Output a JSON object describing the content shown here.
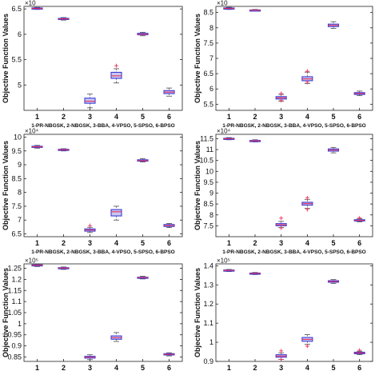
{
  "chart_data": [
    {
      "type": "box",
      "ylabel": "Objective Function Values",
      "xlabel": "1-PR-NBGSK, 2-NBGSK, 3-BBA, 4-VPSO, 5-SPSO, 6-BPSO",
      "exponent": "×10",
      "categories": [
        "1",
        "2",
        "3",
        "4",
        "5",
        "6"
      ],
      "ylim": [
        4.5,
        6.55
      ],
      "yticks": [
        "5",
        "5.5",
        "6",
        "6.5"
      ],
      "yticks_values": [
        5,
        5.5,
        6,
        6.5
      ],
      "boxes": [
        {
          "min": 6.49,
          "q1": 6.5,
          "median": 6.51,
          "q3": 6.52,
          "max": 6.53,
          "outliers": []
        },
        {
          "min": 6.28,
          "q1": 6.295,
          "median": 6.305,
          "q3": 6.315,
          "max": 6.33,
          "outliers": []
        },
        {
          "min": 4.55,
          "q1": 4.64,
          "median": 4.68,
          "q3": 4.74,
          "max": 4.82,
          "outliers": []
        },
        {
          "min": 5.04,
          "q1": 5.13,
          "median": 5.18,
          "q3": 5.25,
          "max": 5.32,
          "outliers": [
            5.38
          ]
        },
        {
          "min": 5.97,
          "q1": 5.99,
          "median": 6.0,
          "q3": 6.02,
          "max": 6.04,
          "outliers": []
        },
        {
          "min": 4.78,
          "q1": 4.83,
          "median": 4.86,
          "q3": 4.89,
          "max": 4.94,
          "outliers": []
        }
      ]
    },
    {
      "type": "box",
      "ylabel": "Objective Function Values",
      "xlabel": "1-PR-NBGSK, 2-NBGSK, 3-BBA, 4-VPSO, 5-SPSO, 6-BPSO",
      "exponent": "×10",
      "categories": [
        "1",
        "2",
        "3",
        "4",
        "5",
        "6"
      ],
      "ylim": [
        5.3,
        8.7
      ],
      "yticks": [
        "5.5",
        "6",
        "6.5",
        "7",
        "7.5",
        "8",
        "8.5"
      ],
      "yticks_values": [
        5.5,
        6,
        6.5,
        7,
        7.5,
        8,
        8.5
      ],
      "boxes": [
        {
          "min": 8.6,
          "q1": 8.62,
          "median": 8.635,
          "q3": 8.65,
          "max": 8.67,
          "outliers": []
        },
        {
          "min": 8.55,
          "q1": 8.565,
          "median": 8.575,
          "q3": 8.585,
          "max": 8.6,
          "outliers": []
        },
        {
          "min": 5.6,
          "q1": 5.67,
          "median": 5.71,
          "q3": 5.75,
          "max": 5.82,
          "outliers": [
            5.85,
            5.62
          ]
        },
        {
          "min": 6.18,
          "q1": 6.27,
          "median": 6.33,
          "q3": 6.4,
          "max": 6.55,
          "outliers": [
            6.58,
            6.22
          ]
        },
        {
          "min": 7.98,
          "q1": 8.04,
          "median": 8.08,
          "q3": 8.12,
          "max": 8.2,
          "outliers": []
        },
        {
          "min": 5.78,
          "q1": 5.82,
          "median": 5.85,
          "q3": 5.88,
          "max": 5.93,
          "outliers": []
        }
      ]
    },
    {
      "type": "box",
      "ylabel": "Objective Function Values",
      "xlabel": "1-PR-NBGSK, 2-NBGSK, 3-BBA, 4-VPSO, 5-SPSO, 6-BPSO",
      "exponent": "×10⁴",
      "categories": [
        "1",
        "2",
        "3",
        "4",
        "5",
        "6"
      ],
      "ylim": [
        6.4,
        10.1
      ],
      "yticks": [
        "6.5",
        "7",
        "7.5",
        "8",
        "8.5",
        "9",
        "9.5",
        "10"
      ],
      "yticks_values": [
        6.5,
        7,
        7.5,
        8,
        8.5,
        9,
        9.5,
        10
      ],
      "boxes": [
        {
          "min": 9.6,
          "q1": 9.63,
          "median": 9.65,
          "q3": 9.67,
          "max": 9.7,
          "outliers": []
        },
        {
          "min": 9.5,
          "q1": 9.52,
          "median": 9.54,
          "q3": 9.56,
          "max": 9.58,
          "outliers": []
        },
        {
          "min": 6.55,
          "q1": 6.6,
          "median": 6.64,
          "q3": 6.68,
          "max": 6.74,
          "outliers": [
            6.8
          ]
        },
        {
          "min": 7.0,
          "q1": 7.15,
          "median": 7.3,
          "q3": 7.38,
          "max": 7.5,
          "outliers": []
        },
        {
          "min": 9.1,
          "q1": 9.13,
          "median": 9.15,
          "q3": 9.18,
          "max": 9.22,
          "outliers": []
        },
        {
          "min": 6.73,
          "q1": 6.77,
          "median": 6.8,
          "q3": 6.84,
          "max": 6.88,
          "outliers": []
        }
      ]
    },
    {
      "type": "box",
      "ylabel": "Objective Function Values",
      "xlabel": "1-PR-NBGSK, 2-NBGSK, 3-BBA, 4-VPSO, 5-SPSO, 6-BPSO",
      "exponent": "×10⁴",
      "categories": [
        "1",
        "2",
        "3",
        "4",
        "5",
        "6"
      ],
      "ylim": [
        7.0,
        11.7
      ],
      "yticks": [
        "7.5",
        "8",
        "8.5",
        "9",
        "9.5",
        "10",
        "10.5",
        "11",
        "11.5"
      ],
      "yticks_values": [
        7.5,
        8,
        8.5,
        9,
        9.5,
        10,
        10.5,
        11,
        11.5
      ],
      "boxes": [
        {
          "min": 11.45,
          "q1": 11.48,
          "median": 11.5,
          "q3": 11.52,
          "max": 11.55,
          "outliers": []
        },
        {
          "min": 11.35,
          "q1": 11.38,
          "median": 11.4,
          "q3": 11.42,
          "max": 11.45,
          "outliers": []
        },
        {
          "min": 7.42,
          "q1": 7.5,
          "median": 7.55,
          "q3": 7.6,
          "max": 7.7,
          "outliers": [
            7.85,
            7.4
          ]
        },
        {
          "min": 8.3,
          "q1": 8.45,
          "median": 8.52,
          "q3": 8.58,
          "max": 8.7,
          "outliers": [
            8.78,
            8.25
          ]
        },
        {
          "min": 10.85,
          "q1": 10.93,
          "median": 10.98,
          "q3": 11.03,
          "max": 11.1,
          "outliers": []
        },
        {
          "min": 7.68,
          "q1": 7.72,
          "median": 7.75,
          "q3": 7.78,
          "max": 7.82,
          "outliers": [
            7.86
          ]
        }
      ]
    },
    {
      "type": "box",
      "ylabel": "Objective Function Values",
      "xlabel": "",
      "exponent": "×10⁵",
      "categories": [
        "1",
        "2",
        "3",
        "4",
        "5",
        "6"
      ],
      "ylim": [
        0.83,
        1.27
      ],
      "yticks": [
        "0.85",
        "0.9",
        "0.95",
        "1",
        "1.05",
        "1.1",
        "1.15",
        "1.2",
        "1.25"
      ],
      "yticks_values": [
        0.85,
        0.9,
        0.95,
        1,
        1.05,
        1.1,
        1.15,
        1.2,
        1.25
      ],
      "boxes": [
        {
          "min": 1.258,
          "q1": 1.262,
          "median": 1.264,
          "q3": 1.266,
          "max": 1.268,
          "outliers": []
        },
        {
          "min": 1.245,
          "q1": 1.249,
          "median": 1.251,
          "q3": 1.253,
          "max": 1.256,
          "outliers": []
        },
        {
          "min": 0.838,
          "q1": 0.845,
          "median": 0.849,
          "q3": 0.853,
          "max": 0.86,
          "outliers": []
        },
        {
          "min": 0.92,
          "q1": 0.93,
          "median": 0.937,
          "q3": 0.945,
          "max": 0.96,
          "outliers": []
        },
        {
          "min": 1.202,
          "q1": 1.206,
          "median": 1.208,
          "q3": 1.21,
          "max": 1.214,
          "outliers": []
        },
        {
          "min": 0.855,
          "q1": 0.859,
          "median": 0.862,
          "q3": 0.865,
          "max": 0.869,
          "outliers": []
        }
      ]
    },
    {
      "type": "box",
      "ylabel": "Objective Function Values",
      "xlabel": "",
      "exponent": "×10⁵",
      "categories": [
        "1",
        "2",
        "3",
        "4",
        "5",
        "6"
      ],
      "ylim": [
        0.9,
        1.41
      ],
      "yticks": [
        "0.9",
        "1",
        "1.1",
        "1.2",
        "1.3",
        "1.4"
      ],
      "yticks_values": [
        0.9,
        1,
        1.1,
        1.2,
        1.3,
        1.4
      ],
      "boxes": [
        {
          "min": 1.37,
          "q1": 1.374,
          "median": 1.376,
          "q3": 1.378,
          "max": 1.381,
          "outliers": []
        },
        {
          "min": 1.354,
          "q1": 1.358,
          "median": 1.36,
          "q3": 1.362,
          "max": 1.365,
          "outliers": []
        },
        {
          "min": 0.91,
          "q1": 0.922,
          "median": 0.928,
          "q3": 0.935,
          "max": 0.945,
          "outliers": [
            0.955,
            0.91
          ]
        },
        {
          "min": 0.99,
          "q1": 1.005,
          "median": 1.015,
          "q3": 1.025,
          "max": 1.04,
          "outliers": [
            0.98
          ]
        },
        {
          "min": 1.308,
          "q1": 1.314,
          "median": 1.318,
          "q3": 1.322,
          "max": 1.328,
          "outliers": []
        },
        {
          "min": 0.935,
          "q1": 0.94,
          "median": 0.944,
          "q3": 0.948,
          "max": 0.953,
          "outliers": [
            0.958
          ]
        }
      ]
    }
  ],
  "colors": {
    "box_stroke": "#3a3ad8",
    "box_fill": "#c8c8f0",
    "median": "#e8305a",
    "whisker": "#4a4a4a",
    "outlier": "#e8305a",
    "axis": "#222222"
  }
}
